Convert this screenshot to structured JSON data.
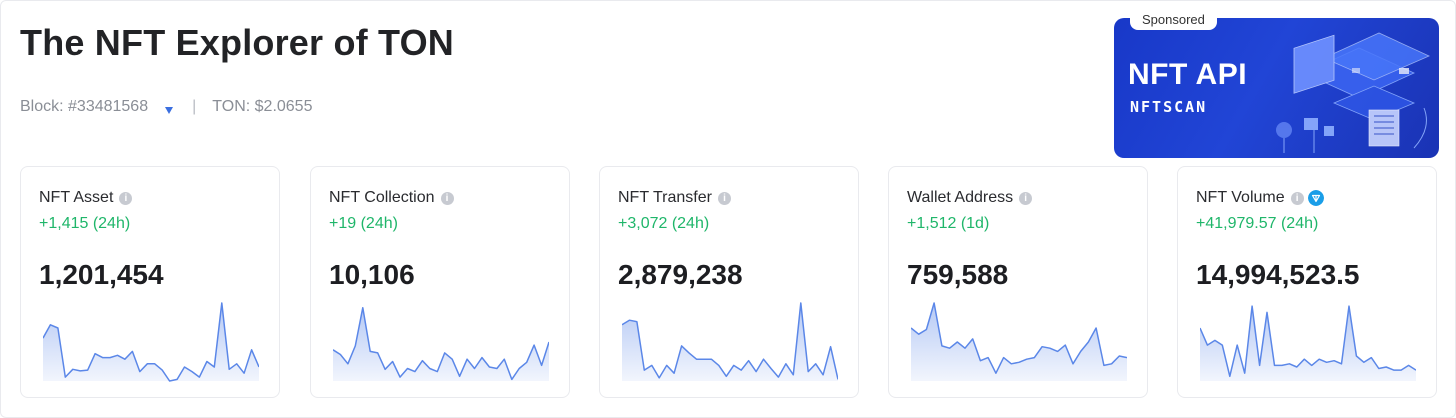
{
  "header": {
    "title": "The NFT Explorer of TON",
    "block_text": "Block: #33481568",
    "ton_price_text": "TON: $2.0655",
    "separator": "|"
  },
  "sponsored": {
    "tag": "Sponsored",
    "title": "NFT API",
    "brand": "NFTSCAN"
  },
  "cards": [
    {
      "label": "NFT Asset",
      "delta": "+1,415 (24h)",
      "value": "1,201,454",
      "spark": [
        0.55,
        0.72,
        0.68,
        0.05,
        0.15,
        0.13,
        0.14,
        0.35,
        0.3,
        0.3,
        0.33,
        0.28,
        0.38,
        0.12,
        0.22,
        0.22,
        0.14,
        0.0,
        0.02,
        0.18,
        0.12,
        0.05,
        0.25,
        0.18,
        1.0,
        0.15,
        0.22,
        0.1,
        0.4,
        0.18
      ]
    },
    {
      "label": "NFT Collection",
      "delta": "+19 (24h)",
      "value": "10,106",
      "spark": [
        0.4,
        0.34,
        0.22,
        0.45,
        0.94,
        0.38,
        0.36,
        0.15,
        0.25,
        0.05,
        0.16,
        0.12,
        0.26,
        0.16,
        0.12,
        0.36,
        0.28,
        0.06,
        0.28,
        0.16,
        0.3,
        0.18,
        0.16,
        0.28,
        0.02,
        0.16,
        0.24,
        0.46,
        0.2,
        0.5
      ]
    },
    {
      "label": "NFT Transfer",
      "delta": "+3,072 (24h)",
      "value": "2,879,238",
      "spark": [
        0.72,
        0.78,
        0.76,
        0.14,
        0.2,
        0.04,
        0.2,
        0.1,
        0.45,
        0.36,
        0.28,
        0.28,
        0.28,
        0.2,
        0.06,
        0.2,
        0.14,
        0.26,
        0.12,
        0.28,
        0.16,
        0.05,
        0.22,
        0.08,
        1.0,
        0.12,
        0.22,
        0.08,
        0.44,
        0.02
      ]
    },
    {
      "label": "Wallet Address",
      "delta": "+1,512 (1d)",
      "value": "759,588",
      "spark": [
        0.68,
        0.6,
        0.66,
        1.0,
        0.45,
        0.42,
        0.5,
        0.42,
        0.54,
        0.26,
        0.3,
        0.1,
        0.3,
        0.22,
        0.24,
        0.28,
        0.3,
        0.44,
        0.42,
        0.38,
        0.46,
        0.22,
        0.38,
        0.5,
        0.68,
        0.2,
        0.22,
        0.32,
        0.3
      ]
    },
    {
      "label": "NFT Volume",
      "delta": "+41,979.57 (24h)",
      "value": "14,994,523.5",
      "spark": [
        0.68,
        0.46,
        0.52,
        0.46,
        0.06,
        0.46,
        0.1,
        0.96,
        0.2,
        0.88,
        0.2,
        0.2,
        0.22,
        0.18,
        0.28,
        0.2,
        0.28,
        0.24,
        0.26,
        0.22,
        0.96,
        0.32,
        0.24,
        0.3,
        0.16,
        0.18,
        0.14,
        0.14,
        0.2,
        0.14
      ]
    }
  ],
  "colors": {
    "delta_green": "#1fb66a",
    "spark_line": "#5b87e8",
    "banner_blue": "#1f40d0",
    "ton_badge": "#1a9ee8"
  }
}
